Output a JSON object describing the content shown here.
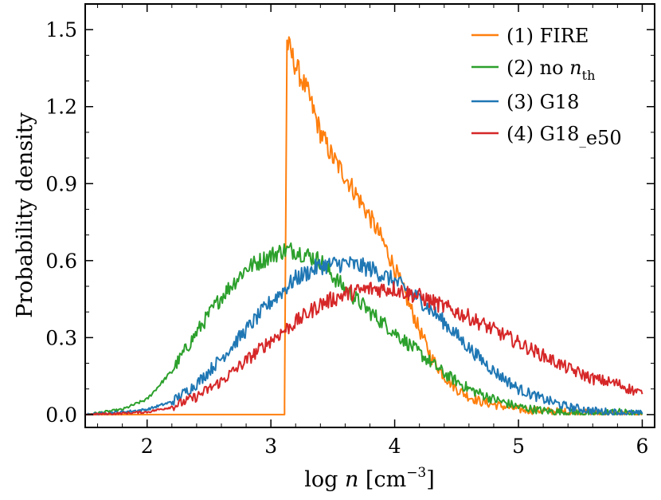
{
  "chart_data": {
    "type": "line",
    "title": "",
    "xlabel": "log n [cm⁻³]",
    "ylabel": "Probability density",
    "xlim": [
      1.5,
      6.1
    ],
    "ylim": [
      -0.05,
      1.6
    ],
    "xticks": [
      2,
      3,
      4,
      5,
      6
    ],
    "xtick_labels": [
      "2",
      "3",
      "4",
      "5",
      "6"
    ],
    "yticks": [
      0.0,
      0.3,
      0.6,
      0.9,
      1.2,
      1.5
    ],
    "ytick_labels": [
      "0.0",
      "0.3",
      "0.6",
      "0.9",
      "1.2",
      "1.5"
    ],
    "legend_position": "top-right",
    "series": [
      {
        "name": "(1) FIRE",
        "color": "#ff7f0e",
        "x": [
          1.5,
          3.11,
          3.11,
          3.13,
          3.2,
          3.3,
          3.4,
          3.5,
          3.6,
          3.7,
          3.8,
          3.9,
          4.0,
          4.1,
          4.2,
          4.3,
          4.4,
          4.5,
          4.6,
          4.7,
          4.8,
          4.9,
          5.0,
          5.2,
          5.4,
          5.6,
          5.8,
          6.0
        ],
        "values": [
          0.0,
          0.0,
          0.05,
          1.45,
          1.36,
          1.25,
          1.1,
          1.0,
          0.93,
          0.85,
          0.77,
          0.68,
          0.57,
          0.45,
          0.33,
          0.22,
          0.15,
          0.1,
          0.07,
          0.05,
          0.04,
          0.03,
          0.02,
          0.015,
          0.01,
          0.005,
          0.003,
          0.0
        ]
      },
      {
        "name": "(2) no n_th",
        "color": "#2ca02c",
        "x": [
          1.5,
          1.8,
          2.0,
          2.2,
          2.4,
          2.6,
          2.8,
          3.0,
          3.1,
          3.2,
          3.3,
          3.4,
          3.5,
          3.6,
          3.8,
          4.0,
          4.2,
          4.4,
          4.6,
          4.8,
          5.0,
          5.2,
          5.4,
          5.6,
          5.8,
          6.0
        ],
        "values": [
          0.0,
          0.02,
          0.06,
          0.17,
          0.32,
          0.46,
          0.57,
          0.62,
          0.64,
          0.64,
          0.62,
          0.6,
          0.54,
          0.49,
          0.4,
          0.32,
          0.24,
          0.16,
          0.1,
          0.06,
          0.03,
          0.015,
          0.008,
          0.004,
          0.01,
          0.0
        ]
      },
      {
        "name": "(3) G18",
        "color": "#1f77b4",
        "x": [
          1.5,
          1.8,
          2.0,
          2.2,
          2.4,
          2.6,
          2.8,
          3.0,
          3.2,
          3.4,
          3.6,
          3.8,
          4.0,
          4.2,
          4.4,
          4.6,
          4.8,
          5.0,
          5.2,
          5.4,
          5.6,
          5.8,
          6.0
        ],
        "values": [
          0.0,
          0.01,
          0.02,
          0.05,
          0.12,
          0.22,
          0.33,
          0.44,
          0.53,
          0.58,
          0.59,
          0.57,
          0.52,
          0.45,
          0.36,
          0.26,
          0.17,
          0.1,
          0.06,
          0.03,
          0.015,
          0.008,
          0.003
        ]
      },
      {
        "name": "(4) G18_e50",
        "color": "#d62728",
        "x": [
          1.5,
          1.8,
          2.0,
          2.2,
          2.4,
          2.6,
          2.8,
          3.0,
          3.2,
          3.4,
          3.6,
          3.8,
          4.0,
          4.2,
          4.4,
          4.6,
          4.8,
          5.0,
          5.2,
          5.4,
          5.6,
          5.8,
          6.0
        ],
        "values": [
          0.0,
          0.005,
          0.01,
          0.03,
          0.07,
          0.13,
          0.21,
          0.29,
          0.36,
          0.43,
          0.47,
          0.49,
          0.49,
          0.46,
          0.42,
          0.38,
          0.33,
          0.28,
          0.23,
          0.18,
          0.14,
          0.12,
          0.08
        ]
      }
    ]
  },
  "legend": {
    "items": [
      {
        "label": "(1) FIRE"
      },
      {
        "label": "(2) no ",
        "math_var": "n",
        "math_sub": "th"
      },
      {
        "label": "(3) G18"
      },
      {
        "label": "(4) G18",
        "math_sub": "e50"
      }
    ]
  },
  "axes": {
    "xlabel_prefix": "log ",
    "xlabel_var": "n",
    "xlabel_units": " [cm",
    "xlabel_exponent": "−3",
    "xlabel_close": "]",
    "ylabel": "Probability density"
  }
}
